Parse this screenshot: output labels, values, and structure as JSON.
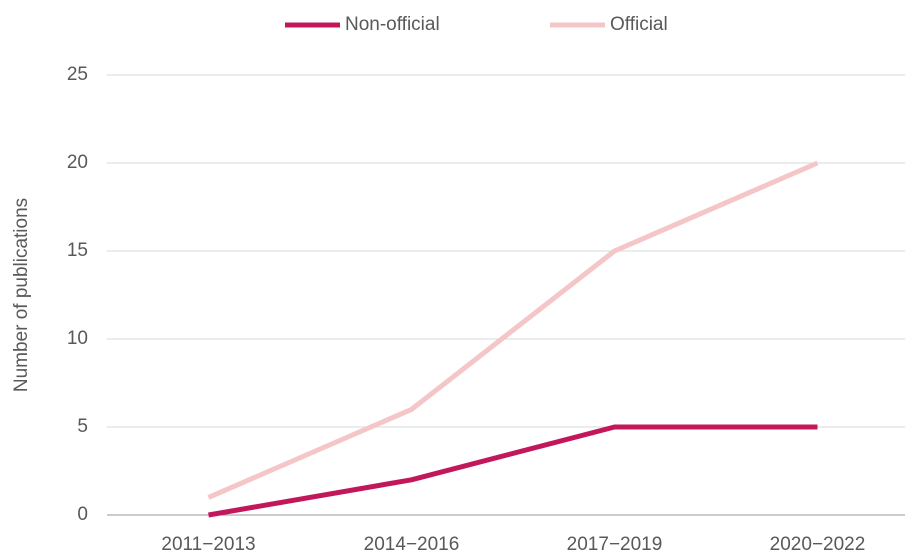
{
  "chart_data": {
    "type": "line",
    "y_label": "Number of publications",
    "categories": [
      "2011−2013",
      "2014−2016",
      "2017−2019",
      "2020−2022"
    ],
    "series": [
      {
        "name": "Non-official",
        "color": "#c2185b",
        "values": [
          0,
          2,
          5,
          5
        ]
      },
      {
        "name": "Official",
        "color": "#f5c6c8",
        "values": [
          1,
          6,
          15,
          20
        ]
      }
    ],
    "ylim": [
      0,
      25
    ],
    "yticks": [
      0,
      5,
      10,
      15,
      20,
      25
    ],
    "grid": true,
    "legend": "top"
  }
}
